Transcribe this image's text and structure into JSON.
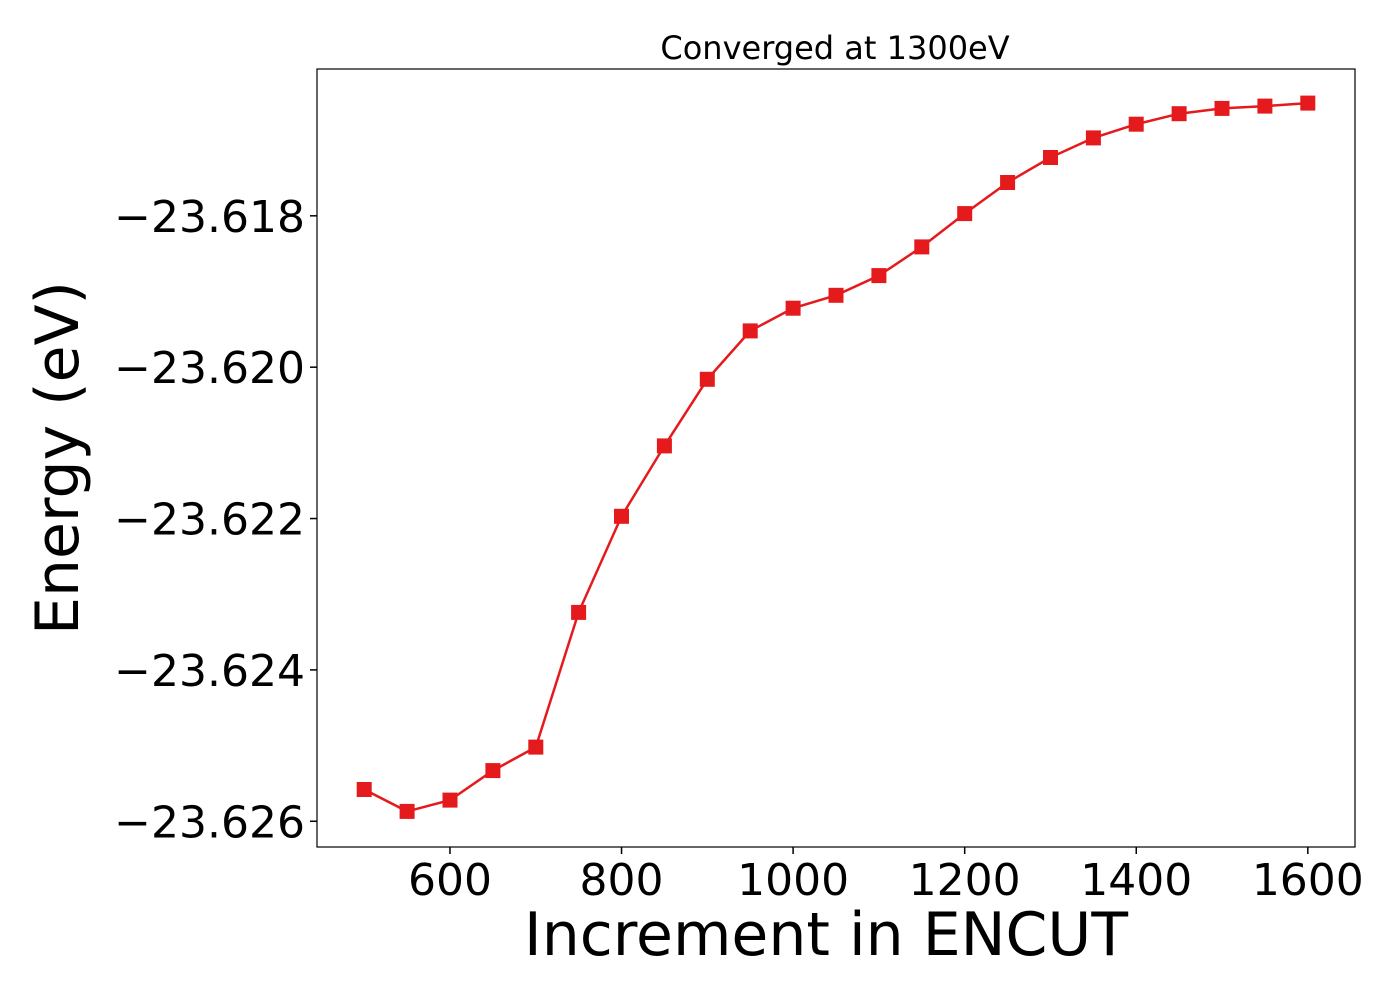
{
  "chart_data": {
    "type": "line",
    "title": "Converged at 1300eV",
    "xlabel": "Increment in ENCUT",
    "ylabel": "Energy (eV)",
    "x": [
      500,
      550,
      600,
      650,
      700,
      750,
      800,
      850,
      900,
      950,
      1000,
      1050,
      1100,
      1150,
      1200,
      1250,
      1300,
      1350,
      1400,
      1450,
      1500,
      1550,
      1600
    ],
    "series": [
      {
        "values": [
          -23.62558,
          -23.62587,
          -23.62572,
          -23.62533,
          -23.62502,
          -23.62324,
          -23.62197,
          -23.62104,
          -23.62016,
          -23.61952,
          -23.61922,
          -23.61905,
          -23.61879,
          -23.61841,
          -23.61797,
          -23.61756,
          -23.61723,
          -23.61697,
          -23.61679,
          -23.61665,
          -23.61658,
          -23.61655,
          -23.61651
        ],
        "color": "#e41a1c",
        "marker": "square"
      }
    ],
    "xlim": [
      445,
      1655
    ],
    "ylim": [
      -23.62634,
      -23.61606
    ],
    "xticks": [
      600,
      800,
      1000,
      1200,
      1400,
      1600
    ],
    "xtick_labels": [
      "600",
      "800",
      "1000",
      "1200",
      "1400",
      "1600"
    ],
    "yticks": [
      -23.618,
      -23.62,
      -23.622,
      -23.624,
      -23.626
    ],
    "ytick_labels": [
      "−23.618",
      "−23.620",
      "−23.622",
      "−23.624",
      "−23.626"
    ],
    "grid": false,
    "legend": "none"
  }
}
